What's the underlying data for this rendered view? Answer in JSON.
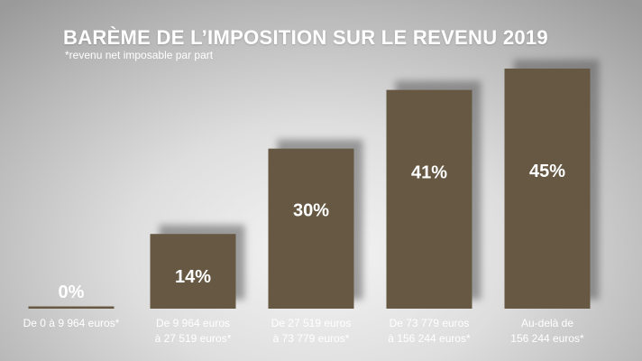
{
  "chart_data": {
    "type": "bar",
    "title": "BARÈME DE L’IMPOSITION SUR LE REVENU 2019",
    "subtitle": "*revenu net imposable par part",
    "categories": [
      [
        "De 0 à 9 964 euros*"
      ],
      [
        "De 9 964 euros",
        "à 27 519 euros*"
      ],
      [
        "De 27 519 euros",
        "à 73 779 euros*"
      ],
      [
        "De 73 779 euros",
        "à 156 244 euros*"
      ],
      [
        "Au-delà de",
        "156 244 euros*"
      ]
    ],
    "values": [
      0,
      14,
      30,
      41,
      45
    ],
    "data_labels": [
      "0%",
      "14%",
      "30%",
      "41%",
      "45%"
    ],
    "ylim": [
      0,
      45
    ],
    "grid": false,
    "legend": "none"
  },
  "colors": {
    "bar": "#665842",
    "shadow": "#5a5a5a",
    "text": "#ffffff"
  }
}
